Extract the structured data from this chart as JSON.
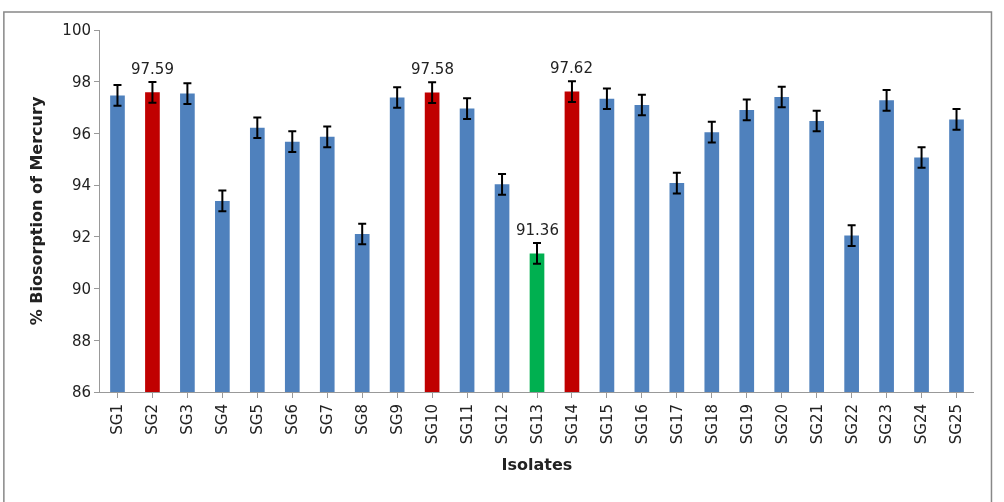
{
  "chart_data": {
    "type": "bar",
    "xlabel": "Isolates",
    "ylabel": "% Biosorption of Mercury",
    "categories": [
      "SG1",
      "SG2",
      "SG3",
      "SG4",
      "SG5",
      "SG6",
      "SG7",
      "SG8",
      "SG9",
      "SG10",
      "SG11",
      "SG12",
      "SG13",
      "SG14",
      "SG15",
      "SG16",
      "SG17",
      "SG18",
      "SG19",
      "SG20",
      "SG21",
      "SG22",
      "SG23",
      "SG24",
      "SG25"
    ],
    "values": [
      97.47,
      97.59,
      97.54,
      93.39,
      96.22,
      95.68,
      95.87,
      92.11,
      97.39,
      97.58,
      96.96,
      94.03,
      91.36,
      97.62,
      97.34,
      97.1,
      94.08,
      96.05,
      96.91,
      97.41,
      96.48,
      92.05,
      97.28,
      95.07,
      96.54
    ],
    "colors": [
      "#4f81bd",
      "#c00000",
      "#4f81bd",
      "#4f81bd",
      "#4f81bd",
      "#4f81bd",
      "#4f81bd",
      "#4f81bd",
      "#4f81bd",
      "#c00000",
      "#4f81bd",
      "#4f81bd",
      "#00b050",
      "#c00000",
      "#4f81bd",
      "#4f81bd",
      "#4f81bd",
      "#4f81bd",
      "#4f81bd",
      "#4f81bd",
      "#4f81bd",
      "#4f81bd",
      "#4f81bd",
      "#4f81bd",
      "#4f81bd"
    ],
    "errors": [
      0.4,
      0.4,
      0.4,
      0.4,
      0.4,
      0.4,
      0.4,
      0.4,
      0.4,
      0.4,
      0.4,
      0.4,
      0.4,
      0.4,
      0.4,
      0.4,
      0.4,
      0.4,
      0.4,
      0.4,
      0.4,
      0.4,
      0.4,
      0.4,
      0.4
    ],
    "value_labels": [
      null,
      "97.59",
      null,
      null,
      null,
      null,
      null,
      null,
      null,
      "97.58",
      null,
      null,
      "91.36",
      "97.62",
      null,
      null,
      null,
      null,
      null,
      null,
      null,
      null,
      null,
      null,
      null
    ],
    "ylim": [
      86,
      100
    ],
    "yticks": [
      86,
      88,
      90,
      92,
      94,
      96,
      98,
      100
    ]
  }
}
